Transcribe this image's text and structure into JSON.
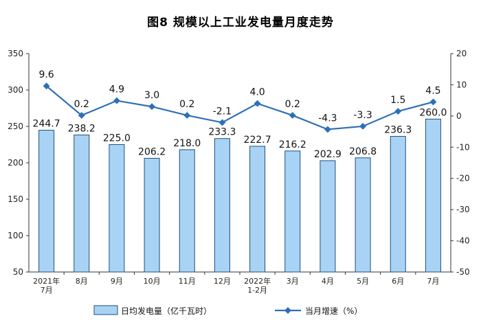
{
  "chart_data": {
    "type": "bar+line",
    "title": "图8  规模以上工业发电量月度走势",
    "categories": [
      [
        "2021年",
        "7月"
      ],
      [
        "8月"
      ],
      [
        "9月"
      ],
      [
        "10月"
      ],
      [
        "11月"
      ],
      [
        "12月"
      ],
      [
        "2022年",
        "1-2月"
      ],
      [
        "3月"
      ],
      [
        "4月"
      ],
      [
        "5月"
      ],
      [
        "6月"
      ],
      [
        "7月"
      ]
    ],
    "series": [
      {
        "name": "日均发电量（亿千瓦时）",
        "type": "bar",
        "axis": "left",
        "color": "#a9d3f5",
        "edge_color": "#1f4e79",
        "values": [
          244.7,
          238.2,
          225.0,
          206.2,
          218.0,
          233.3,
          222.7,
          216.2,
          202.9,
          206.8,
          236.3,
          260.0
        ],
        "labels": [
          "244.7",
          "238.2",
          "225.0",
          "206.2",
          "218.0",
          "233.3",
          "222.7",
          "216.2",
          "202.9",
          "206.8",
          "236.3",
          "260.0"
        ]
      },
      {
        "name": "当月增速（%）",
        "type": "line",
        "axis": "right",
        "color": "#2e6fb7",
        "values": [
          9.6,
          0.2,
          4.9,
          3.0,
          0.2,
          -2.1,
          4.0,
          0.2,
          -4.3,
          -3.3,
          1.5,
          4.5
        ],
        "labels": [
          "9.6",
          "0.2",
          "4.9",
          "3.0",
          "0.2",
          "-2.1",
          "4.0",
          "0.2",
          "-4.3",
          "-3.3",
          "1.5",
          "4.5"
        ]
      }
    ],
    "y_left": {
      "min": 50,
      "max": 350,
      "ticks": [
        "350",
        "300",
        "250",
        "200",
        "150",
        "100",
        "50"
      ]
    },
    "y_right": {
      "min": -50,
      "max": 20,
      "ticks": [
        "20",
        "10",
        "0",
        "-10",
        "-20",
        "-30",
        "-40",
        "-50"
      ]
    },
    "legend_position": "bottom",
    "grid": false
  }
}
